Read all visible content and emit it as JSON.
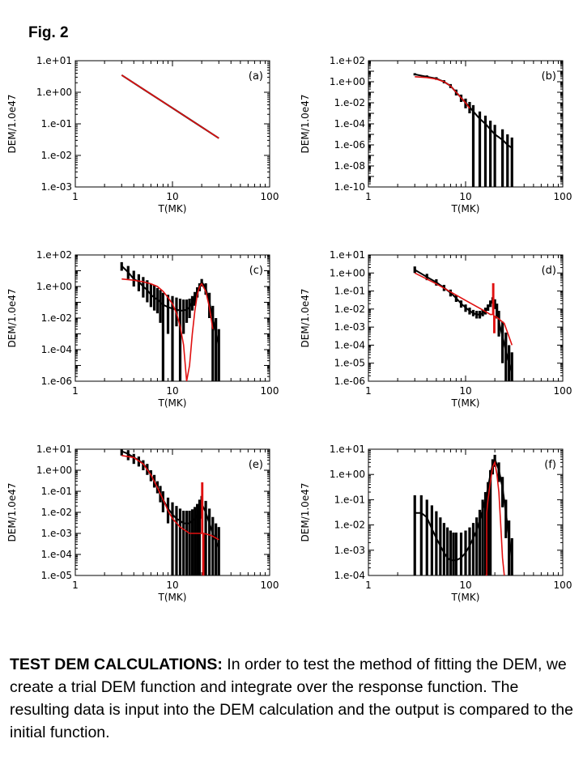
{
  "figure": {
    "title": "Fig. 2",
    "caption_heading": "TEST DEM CALCULATIONS:",
    "caption_text": " In order to test the method of fitting the DEM,  we create a trial DEM function and integrate over the response function. The resulting data is input into the DEM calculation and the output is compared to the initial function."
  },
  "colors": {
    "data": "#000000",
    "model": "#e01010"
  },
  "chart_data": [
    {
      "panel": "(a)",
      "type": "line",
      "xlabel": "T(MK)",
      "ylabel": "DEM/1.0e47",
      "xscale": "log",
      "yscale": "log",
      "xlim": [
        1,
        100
      ],
      "ylim": [
        0.001,
        10
      ],
      "xticks": [
        "1",
        "10",
        "100"
      ],
      "yticks": [
        "1.e-03",
        "1.e-02",
        "1.e-01",
        "1.e+00",
        "1.e+01"
      ],
      "series": [
        {
          "kind": "data",
          "x": [
            3,
            5,
            10,
            20,
            30
          ],
          "y": [
            3.5,
            1.26,
            0.316,
            0.079,
            0.035
          ],
          "err_low": [
            3.5,
            1.26,
            0.316,
            0.079,
            0.035
          ],
          "err_high": [
            3.5,
            1.26,
            0.316,
            0.079,
            0.035
          ]
        },
        {
          "kind": "model",
          "x": [
            3,
            5,
            10,
            20,
            30
          ],
          "y": [
            3.5,
            1.26,
            0.316,
            0.079,
            0.035
          ]
        }
      ]
    },
    {
      "panel": "(b)",
      "type": "line",
      "xlabel": "T(MK)",
      "ylabel": "DEM/1.0e47",
      "xscale": "log",
      "yscale": "log",
      "xlim": [
        1,
        100
      ],
      "ylim": [
        1e-10,
        100
      ],
      "xticks": [
        "1",
        "10",
        "100"
      ],
      "yticks": [
        "1.e-10",
        "1.e-08",
        "1.e-06",
        "1.e-04",
        "1.e-02",
        "1.e+00",
        "1.e+02"
      ],
      "series": [
        {
          "kind": "data",
          "x": [
            3,
            4,
            5,
            6,
            7,
            8,
            9,
            10,
            11,
            12,
            14,
            16,
            18,
            20,
            24,
            27,
            30
          ],
          "y": [
            5,
            3,
            2,
            1,
            0.4,
            0.1,
            0.03,
            0.01,
            0.004,
            0.0015,
            0.0003,
            0.0001,
            3e-05,
            1e-05,
            3e-06,
            1e-06,
            5e-07
          ],
          "err_low": [
            4,
            2.4,
            1.5,
            0.7,
            0.25,
            0.05,
            0.012,
            0.003,
            0.001,
            1e-10,
            1e-10,
            1e-10,
            1e-10,
            1e-10,
            1e-10,
            1e-10,
            1e-10
          ],
          "err_high": [
            6.5,
            4,
            2.7,
            1.4,
            0.6,
            0.18,
            0.06,
            0.025,
            0.012,
            0.006,
            0.0015,
            0.0006,
            0.0002,
            8e-05,
            3e-05,
            1e-05,
            5e-06
          ]
        },
        {
          "kind": "model",
          "x": [
            3,
            4,
            5,
            6,
            7,
            8,
            9,
            10,
            11
          ],
          "y": [
            3,
            2.5,
            1.8,
            1,
            0.4,
            0.1,
            0.03,
            0.01,
            0.003
          ]
        }
      ]
    },
    {
      "panel": "(c)",
      "type": "line",
      "xlabel": "T(MK)",
      "ylabel": "DEM/1.0e47",
      "xscale": "log",
      "yscale": "log",
      "xlim": [
        1,
        100
      ],
      "ylim": [
        1e-06,
        100
      ],
      "xticks": [
        "1",
        "10",
        "100"
      ],
      "yticks": [
        "1.e-06",
        "1.e-04",
        "1.e-02",
        "1.e+00",
        "1.e+02"
      ],
      "series": [
        {
          "kind": "data",
          "x": [
            3,
            3.5,
            4,
            4.5,
            5,
            5.5,
            6,
            6.5,
            7,
            7.5,
            8,
            9,
            10,
            11,
            12,
            13,
            14,
            15,
            16,
            17,
            18,
            19,
            20,
            22,
            24,
            26,
            28,
            30
          ],
          "y": [
            20,
            8,
            3,
            2,
            1,
            0.6,
            0.3,
            0.2,
            0.15,
            0.1,
            0.07,
            0.05,
            0.04,
            0.035,
            0.03,
            0.03,
            0.035,
            0.05,
            0.1,
            0.2,
            0.5,
            1,
            2,
            0.8,
            0.1,
            0.01,
            0.001,
            0.0002
          ],
          "err_low": [
            10,
            3,
            1,
            0.5,
            0.2,
            0.1,
            0.05,
            0.03,
            0.02,
            0.005,
            1e-06,
            0.001,
            1e-06,
            0.003,
            1e-06,
            0.001,
            0.005,
            0.01,
            0.03,
            0.06,
            0.2,
            0.5,
            1,
            0.3,
            0.01,
            1e-06,
            1e-06,
            1e-06
          ],
          "err_high": [
            35,
            20,
            10,
            6,
            4,
            2.5,
            1.5,
            1.2,
            0.8,
            0.6,
            0.4,
            0.3,
            0.25,
            0.2,
            0.17,
            0.15,
            0.15,
            0.17,
            0.25,
            0.45,
            0.9,
            1.6,
            3,
            1.6,
            0.4,
            0.06,
            0.01,
            0.002
          ]
        },
        {
          "kind": "model",
          "x": [
            3,
            4,
            5,
            6,
            7,
            8,
            9,
            10,
            11,
            12,
            13,
            14,
            15,
            16,
            17,
            18,
            19,
            20,
            22,
            24,
            26
          ],
          "y": [
            3,
            2.5,
            2,
            1.5,
            1,
            0.5,
            0.2,
            0.08,
            0.02,
            0.003,
            0.0002,
            1e-06,
            1e-05,
            0.001,
            0.03,
            0.3,
            1,
            1.5,
            0.5,
            0.05,
            0.002
          ]
        }
      ]
    },
    {
      "panel": "(d)",
      "type": "line",
      "xlabel": "T(MK)",
      "ylabel": "DEM/1.0e47",
      "xscale": "log",
      "yscale": "log",
      "xlim": [
        1,
        100
      ],
      "ylim": [
        1e-06,
        10
      ],
      "xticks": [
        "1",
        "10",
        "100"
      ],
      "yticks": [
        "1.e-06",
        "1.e-05",
        "1.e-04",
        "1.e-03",
        "1.e-02",
        "1.e-01",
        "1.e+00",
        "1.e+01"
      ],
      "series": [
        {
          "kind": "data",
          "x": [
            3,
            4,
            5,
            6,
            7,
            8,
            9,
            10,
            11,
            12,
            13,
            14,
            15,
            16,
            17,
            18,
            19,
            20,
            21,
            22,
            24,
            26,
            28,
            30
          ],
          "y": [
            1.5,
            0.6,
            0.3,
            0.15,
            0.08,
            0.04,
            0.02,
            0.012,
            0.008,
            0.006,
            0.005,
            0.005,
            0.006,
            0.008,
            0.012,
            0.02,
            0.03,
            0.02,
            0.008,
            0.002,
            0.0003,
            5e-05,
            1e-05,
            3e-06
          ],
          "err_low": [
            1,
            0.4,
            0.2,
            0.1,
            0.05,
            0.025,
            0.012,
            0.007,
            0.005,
            0.004,
            0.003,
            0.003,
            0.004,
            0.005,
            0.008,
            0.013,
            0.02,
            0.01,
            0.003,
            0.0003,
            1e-05,
            1e-06,
            1e-06,
            1e-06
          ],
          "err_high": [
            2.3,
            0.9,
            0.45,
            0.22,
            0.12,
            0.06,
            0.03,
            0.018,
            0.012,
            0.009,
            0.008,
            0.008,
            0.009,
            0.012,
            0.018,
            0.03,
            0.045,
            0.035,
            0.02,
            0.008,
            0.002,
            0.0005,
            0.0001,
            4e-05
          ]
        },
        {
          "kind": "model",
          "x": [
            3,
            5,
            10,
            15,
            17,
            18,
            19,
            19,
            19.5,
            19.5,
            20,
            20,
            21,
            25,
            30
          ],
          "y": [
            1,
            0.25,
            0.03,
            0.009,
            0.006,
            0.005,
            0.005,
            0.25,
            0.25,
            0.0005,
            0.0005,
            0.004,
            0.0035,
            0.0016,
            0.0001
          ]
        }
      ]
    },
    {
      "panel": "(e)",
      "type": "line",
      "xlabel": "T(MK)",
      "ylabel": "DEM/1.0e47",
      "xscale": "log",
      "yscale": "log",
      "xlim": [
        1,
        100
      ],
      "ylim": [
        1e-05,
        10
      ],
      "xticks": [
        "1",
        "10",
        "100"
      ],
      "yticks": [
        "1.e-05",
        "1.e-04",
        "1.e-03",
        "1.e-02",
        "1.e-01",
        "1.e+00",
        "1.e+01"
      ],
      "series": [
        {
          "kind": "data",
          "x": [
            3,
            3.5,
            4,
            4.5,
            5,
            5.5,
            6,
            6.5,
            7,
            7.5,
            8,
            9,
            10,
            11,
            12,
            13,
            14,
            15,
            16,
            17,
            18,
            19,
            20,
            22,
            24,
            26,
            28,
            30
          ],
          "y": [
            8,
            6,
            4,
            3,
            2,
            1.2,
            0.6,
            0.3,
            0.15,
            0.08,
            0.04,
            0.015,
            0.008,
            0.005,
            0.004,
            0.003,
            0.003,
            0.003,
            0.004,
            0.005,
            0.008,
            0.015,
            0.025,
            0.01,
            0.003,
            0.001,
            0.0004,
            0.0002
          ],
          "err_low": [
            5,
            3,
            2,
            1.5,
            1,
            0.6,
            0.3,
            0.15,
            0.08,
            0.03,
            0.01,
            0.003,
            1e-05,
            1e-05,
            1e-05,
            1e-05,
            1e-05,
            1e-05,
            1e-05,
            1e-05,
            1e-05,
            1e-05,
            0.005,
            1e-05,
            1e-05,
            1e-05,
            1e-05,
            1e-05
          ],
          "err_high": [
            12,
            9,
            6,
            4.5,
            3,
            2,
            1,
            0.6,
            0.3,
            0.18,
            0.1,
            0.05,
            0.03,
            0.02,
            0.015,
            0.012,
            0.012,
            0.012,
            0.014,
            0.018,
            0.025,
            0.04,
            0.06,
            0.035,
            0.015,
            0.006,
            0.003,
            0.002
          ]
        },
        {
          "kind": "model",
          "x": [
            3,
            4,
            5,
            6,
            7,
            8,
            9,
            10,
            12,
            15,
            19,
            20,
            20,
            20.5,
            20.5,
            21,
            21,
            25,
            30
          ],
          "y": [
            5,
            4,
            2,
            0.6,
            0.15,
            0.04,
            0.012,
            0.005,
            0.002,
            0.001,
            0.001,
            0.001,
            0.25,
            0.25,
            1e-05,
            1e-05,
            0.001,
            0.0008,
            0.0005
          ]
        }
      ]
    },
    {
      "panel": "(f)",
      "type": "line",
      "xlabel": "T(MK)",
      "ylabel": "DEM/1.0e47",
      "xscale": "log",
      "yscale": "log",
      "xlim": [
        1,
        100
      ],
      "ylim": [
        0.0001,
        10
      ],
      "xticks": [
        "1",
        "10",
        "100"
      ],
      "yticks": [
        "1.e-04",
        "1.e-03",
        "1.e-02",
        "1.e-01",
        "1.e+00",
        "1.e+01"
      ],
      "series": [
        {
          "kind": "data",
          "x": [
            3,
            3.5,
            4,
            4.5,
            5,
            5.5,
            6,
            6.5,
            7,
            7.5,
            8,
            9,
            10,
            11,
            12,
            13,
            14,
            15,
            16,
            17,
            18,
            19,
            20,
            22,
            24,
            26,
            28,
            30
          ],
          "y": [
            0.03,
            0.03,
            0.02,
            0.007,
            0.003,
            0.0015,
            0.0008,
            0.0005,
            0.0004,
            0.0004,
            0.0004,
            0.0005,
            0.0008,
            0.0015,
            0.003,
            0.006,
            0.015,
            0.04,
            0.1,
            0.3,
            1,
            2.5,
            4,
            1.5,
            0.3,
            0.03,
            0.003,
            0.0005
          ],
          "err_low": [
            0.0001,
            0.0001,
            0.0001,
            0.0001,
            0.0001,
            0.0001,
            0.0001,
            0.0001,
            0.0001,
            0.0001,
            0.0001,
            0.0001,
            0.0001,
            0.0001,
            0.0001,
            0.0001,
            0.0001,
            0.0001,
            0.0001,
            0.0001,
            0.0001,
            1,
            2,
            0.5,
            0.05,
            0.003,
            0.0001,
            0.0001
          ],
          "err_high": [
            0.15,
            0.15,
            0.1,
            0.06,
            0.035,
            0.02,
            0.012,
            0.008,
            0.006,
            0.005,
            0.005,
            0.005,
            0.006,
            0.008,
            0.012,
            0.02,
            0.04,
            0.1,
            0.2,
            0.5,
            1.5,
            4,
            6,
            3,
            0.8,
            0.1,
            0.015,
            0.003
          ]
        },
        {
          "kind": "model",
          "x": [
            16,
            16.5,
            16.5,
            17,
            18,
            19,
            20,
            21,
            22,
            23,
            24,
            25
          ],
          "y": [
            0.0001,
            0.0001,
            0.03,
            0.1,
            0.5,
            2,
            3,
            1,
            0.2,
            0.01,
            0.0005,
            0.0001
          ]
        }
      ]
    }
  ]
}
